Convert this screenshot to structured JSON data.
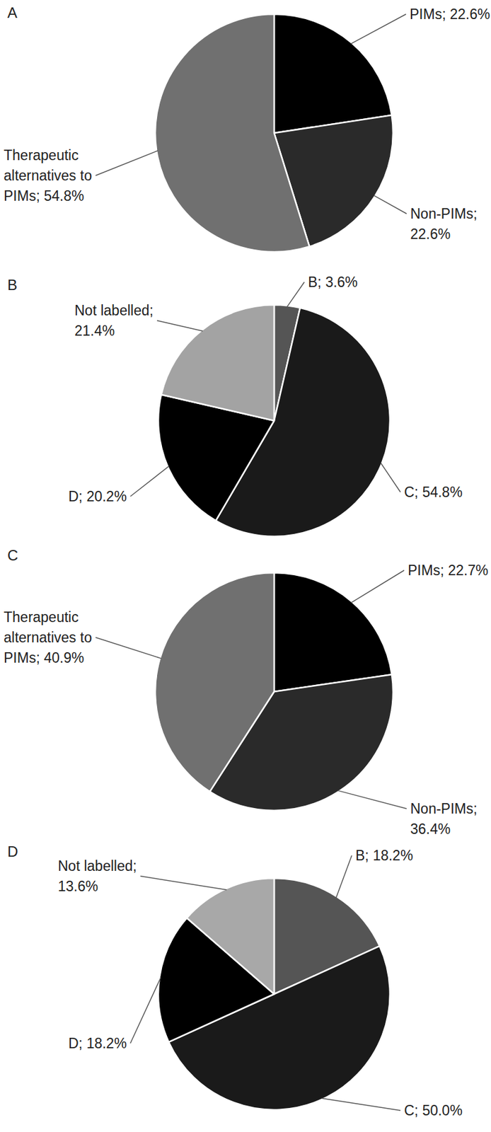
{
  "chart_data": [
    {
      "type": "pie",
      "title": "A",
      "categories": [
        "PIMs;",
        "Non-PIMs;",
        "Therapeutic alternatives to PIMs;"
      ],
      "values": [
        22.6,
        22.6,
        54.8
      ],
      "value_labels": [
        "22.6%",
        "22.6%",
        "54.8%"
      ],
      "colors": [
        "#000000",
        "#2a2a2a",
        "#707070"
      ],
      "data_labels": true
    },
    {
      "type": "pie",
      "title": "B",
      "categories": [
        "B;",
        "C;",
        "D;",
        "Not labelled;"
      ],
      "values": [
        3.6,
        54.8,
        20.2,
        21.4
      ],
      "value_labels": [
        "3.6%",
        "54.8%",
        "20.2%",
        "21.4%"
      ],
      "colors": [
        "#555555",
        "#1a1a1a",
        "#000000",
        "#a3a3a3"
      ],
      "data_labels": true
    },
    {
      "type": "pie",
      "title": "C",
      "categories": [
        "PIMs;",
        "Non-PIMs;",
        "Therapeutic alternatives to PIMs;"
      ],
      "values": [
        22.7,
        36.4,
        40.9
      ],
      "value_labels": [
        "22.7%",
        "36.4%",
        "40.9%"
      ],
      "colors": [
        "#000000",
        "#2a2a2a",
        "#707070"
      ],
      "data_labels": true
    },
    {
      "type": "pie",
      "title": "D",
      "categories": [
        "B;",
        "C;",
        "D;",
        "Not labelled;"
      ],
      "values": [
        18.2,
        50.0,
        18.2,
        13.6
      ],
      "value_labels": [
        "18.2%",
        "50.0%",
        "18.2%",
        "13.6%"
      ],
      "colors": [
        "#555555",
        "#1a1a1a",
        "#000000",
        "#a8a8a8"
      ],
      "data_labels": true
    }
  ]
}
